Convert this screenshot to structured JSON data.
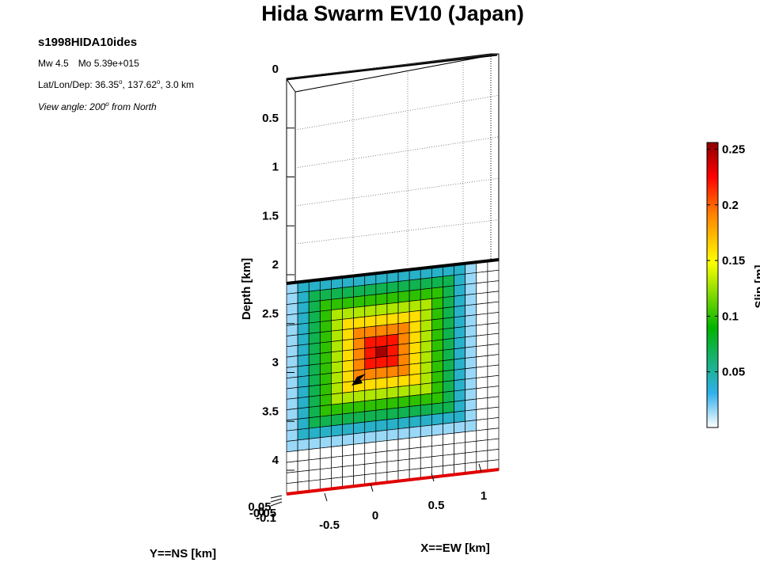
{
  "header": {
    "title": "Hida Swarm EV10 (Japan)",
    "event_id": "s1998HIDA10ides",
    "mw_label": "Mw 4.5",
    "mo_label": "Mo 5.39e+015",
    "loc_prefix": "Lat/Lon/Dep: 36.35",
    "loc_lat_deg": "o",
    "loc_mid": ", 137.62",
    "loc_lon_deg": "o",
    "loc_suffix": ", 3.0 km",
    "view_prefix": "View angle: 200",
    "view_deg": "o",
    "view_suffix": " from North"
  },
  "chart_data": {
    "type": "heatmap",
    "zlabel": "Depth [km]",
    "xlabel": "X==EW [km]",
    "ylabel": "Y==NS [km]",
    "clabel": "Slip [m]",
    "depth_ticks": [
      "0",
      "0.5",
      "1",
      "1.5",
      "2",
      "2.5",
      "3",
      "3.5",
      "4"
    ],
    "x_ticks": [
      "-0.5",
      "0",
      "0.5",
      "1"
    ],
    "y_ticks": [
      "0.05",
      "0",
      "-0.05",
      "-0.1"
    ],
    "colorbar_ticks": [
      "0.05",
      "0.1",
      "0.15",
      "0.2",
      "0.25"
    ],
    "clim": [
      0,
      0.256
    ],
    "depth_range": [
      0,
      4.2
    ],
    "grid": true,
    "fault": {
      "columns": 19,
      "rows": 20,
      "slip_peak_m": 0.25,
      "slip_pattern": "concentric rings around hypocenter",
      "peak_col": 8,
      "peak_row": 7,
      "rings_m": [
        0.25,
        0.22,
        0.19,
        0.16,
        0.13,
        0.1,
        0.07,
        0.04,
        0.015,
        0.0
      ],
      "hypocenter_depth_km": 3.0
    },
    "colormap": [
      "#ffffff",
      "#30b0ee",
      "#00b400",
      "#ffff00",
      "#ff8000",
      "#ff0000",
      "#8b0000"
    ]
  }
}
